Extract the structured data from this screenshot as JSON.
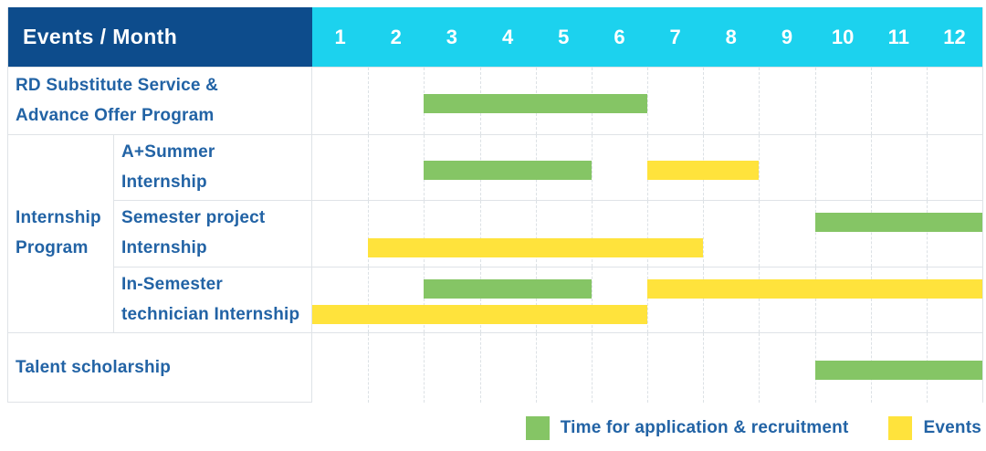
{
  "header": {
    "title": "Events / Month"
  },
  "colors": {
    "header_bg": "#0d4c8c",
    "month_bg": "#1cd2ee",
    "green": "#85c565",
    "yellow": "#ffe33c",
    "label_text": "#2263a5",
    "header_text": "#ffffff",
    "grid_line": "#dfe3e7"
  },
  "chart_data": {
    "type": "bar",
    "subtype": "gantt",
    "title": "Events / Month",
    "x_axis_unit": "month",
    "x_range": [
      1,
      12
    ],
    "months": [
      "1",
      "2",
      "3",
      "4",
      "5",
      "6",
      "7",
      "8",
      "9",
      "10",
      "11",
      "12"
    ],
    "legend": [
      {
        "key": "application",
        "label": "Time for application & recruitment",
        "color": "#85c565"
      },
      {
        "key": "events",
        "label": "Events",
        "color": "#ffe33c"
      }
    ],
    "rows": [
      {
        "group": "",
        "label": "RD Substitute Service &\nAdvance Offer Program",
        "bars": [
          {
            "kind": "application",
            "start_month": 3,
            "end_month": 6,
            "lane": "center"
          }
        ]
      },
      {
        "group": "Internship\nProgram",
        "label": "A+Summer\nInternship",
        "bars": [
          {
            "kind": "application",
            "start_month": 3,
            "end_month": 5,
            "lane": "center"
          },
          {
            "kind": "events",
            "start_month": 7,
            "end_month": 8,
            "lane": "center"
          }
        ]
      },
      {
        "group": "Internship\nProgram",
        "label": "Semester project\nInternship",
        "bars": [
          {
            "kind": "application",
            "start_month": 10,
            "end_month": 12,
            "lane": "upper"
          },
          {
            "kind": "events",
            "start_month": 2,
            "end_month": 7,
            "lane": "lower"
          }
        ]
      },
      {
        "group": "Internship\nProgram",
        "label": "In-Semester\ntechnician Internship",
        "bars": [
          {
            "kind": "application",
            "start_month": 3,
            "end_month": 5,
            "lane": "upper"
          },
          {
            "kind": "events",
            "start_month": 7,
            "end_month": 12,
            "lane": "upper"
          },
          {
            "kind": "events",
            "start_month": 1,
            "end_month": 6,
            "lane": "lower"
          }
        ]
      },
      {
        "group": "",
        "label": "Talent scholarship",
        "bars": [
          {
            "kind": "application",
            "start_month": 10,
            "end_month": 12,
            "lane": "center"
          }
        ]
      }
    ]
  }
}
